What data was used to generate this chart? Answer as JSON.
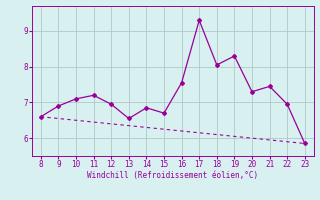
{
  "x": [
    8,
    9,
    10,
    11,
    12,
    13,
    14,
    15,
    16,
    17,
    18,
    19,
    20,
    21,
    22,
    23
  ],
  "y_line": [
    6.6,
    6.9,
    7.1,
    7.2,
    6.95,
    6.55,
    6.85,
    6.7,
    7.55,
    9.3,
    8.05,
    8.3,
    7.3,
    7.45,
    6.95,
    5.85
  ],
  "y_trend": [
    6.6,
    6.55,
    6.5,
    6.45,
    6.4,
    6.35,
    6.3,
    6.25,
    6.2,
    6.15,
    6.1,
    6.05,
    6.0,
    5.95,
    5.9,
    5.85
  ],
  "line_color": "#990099",
  "bg_color": "#d8f0f0",
  "grid_color": "#b0c8c8",
  "xlabel": "Windchill (Refroidissement éolien,°C)",
  "xlim": [
    7.5,
    23.5
  ],
  "ylim": [
    5.5,
    9.7
  ],
  "yticks": [
    6,
    7,
    8,
    9
  ],
  "xticks": [
    8,
    9,
    10,
    11,
    12,
    13,
    14,
    15,
    16,
    17,
    18,
    19,
    20,
    21,
    22,
    23
  ]
}
